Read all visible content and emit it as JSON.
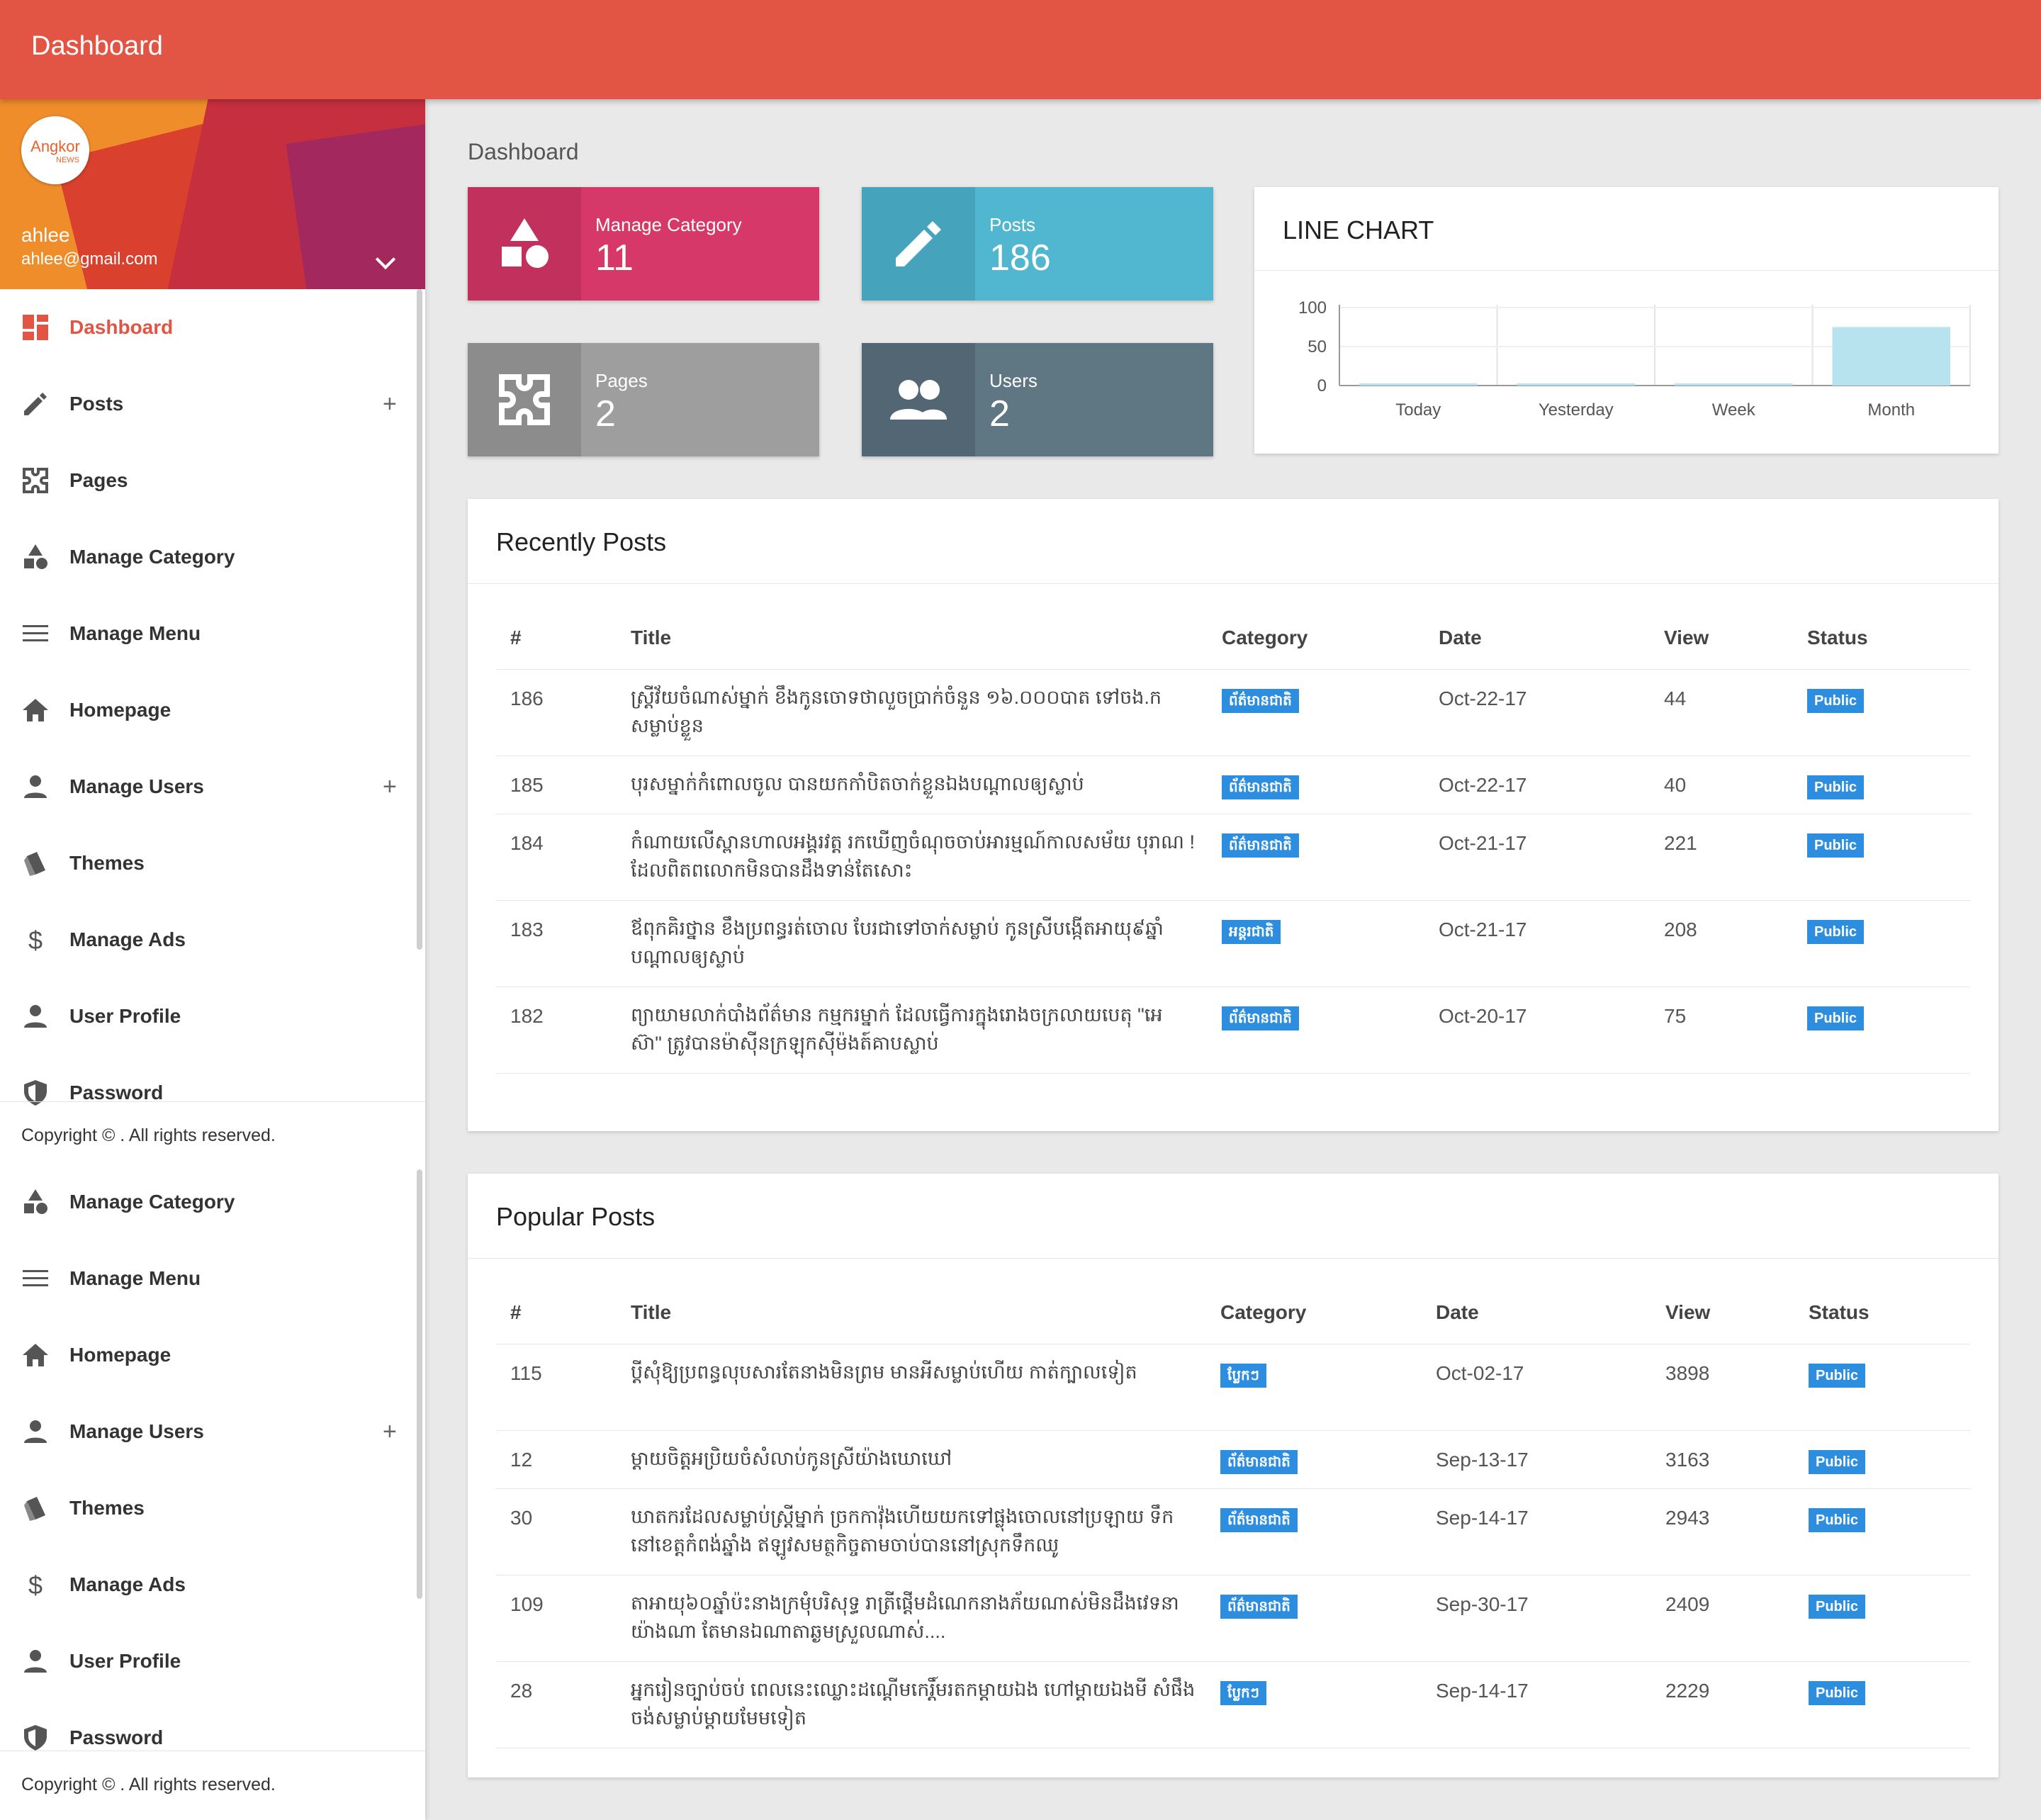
{
  "topbar": {
    "title": "Dashboard"
  },
  "user": {
    "logo_text": "Angkor",
    "logo_sub": "NEWS",
    "name": "ahlee",
    "email": "ahlee@gmail.com"
  },
  "sidebar": {
    "menu_top": [
      {
        "label": "Dashboard",
        "icon": "dashboard-icon",
        "active": true
      },
      {
        "label": "Posts",
        "icon": "pencil-icon",
        "expand": "+"
      },
      {
        "label": "Pages",
        "icon": "puzzle-icon"
      },
      {
        "label": "Manage Category",
        "icon": "shapes-icon"
      },
      {
        "label": "Manage Menu",
        "icon": "menu-icon"
      },
      {
        "label": "Homepage",
        "icon": "home-icon"
      },
      {
        "label": "Manage Users",
        "icon": "person-icon",
        "expand": "+"
      },
      {
        "label": "Themes",
        "icon": "book-icon"
      },
      {
        "label": "Manage Ads",
        "icon": "dollar-icon"
      },
      {
        "label": "User Profile",
        "icon": "person-icon"
      },
      {
        "label": "Password",
        "icon": "shield-icon"
      }
    ],
    "menu_bottom": [
      {
        "label": "Manage Category",
        "icon": "shapes-icon"
      },
      {
        "label": "Manage Menu",
        "icon": "menu-icon"
      },
      {
        "label": "Homepage",
        "icon": "home-icon"
      },
      {
        "label": "Manage Users",
        "icon": "person-icon",
        "expand": "+"
      },
      {
        "label": "Themes",
        "icon": "book-icon"
      },
      {
        "label": "Manage Ads",
        "icon": "dollar-icon"
      },
      {
        "label": "User Profile",
        "icon": "person-icon"
      },
      {
        "label": "Password",
        "icon": "shield-icon"
      }
    ],
    "copyright": "Copyright © . All rights reserved."
  },
  "breadcrumb": "Dashboard",
  "stats": [
    {
      "label": "Manage Category",
      "value": "11",
      "color": "#d6386a",
      "icon_bg": "#c2305e",
      "icon": "shapes-icon"
    },
    {
      "label": "Posts",
      "value": "186",
      "color": "#51b6cf",
      "icon_bg": "#45a3bc",
      "icon": "pencil-icon"
    },
    {
      "label": "Pages",
      "value": "2",
      "color": "#9e9e9e",
      "icon_bg": "#8c8c8c",
      "icon": "puzzle-icon"
    },
    {
      "label": "Users",
      "value": "2",
      "color": "#5f7683",
      "icon_bg": "#526773",
      "icon": "people-icon"
    }
  ],
  "chart_card": {
    "title": "LINE CHART"
  },
  "chart_data": {
    "type": "bar",
    "title": "LINE CHART",
    "categories": [
      "Today",
      "Yesterday",
      "Week",
      "Month"
    ],
    "values": [
      0,
      0,
      0,
      75
    ],
    "ylim": [
      0,
      100
    ],
    "yticks": [
      "100",
      "50",
      "0"
    ],
    "grid": true,
    "bar_color": "#b7e3ee"
  },
  "recent": {
    "title": "Recently Posts",
    "headers": [
      "#",
      "Title",
      "Category",
      "Date",
      "View",
      "Status"
    ],
    "rows": [
      {
        "id": "186",
        "title": "ស្ត្រីវ័យចំណាស់ម្នាក់ ខឹងកូនចោទថាលួចប្រាក់ចំនួន ១៦.០០០បាត ទៅចង.ក សម្លាប់ខ្លួន",
        "category": "ព័ត៌មានជាតិ",
        "date": "Oct-22-17",
        "view": "44",
        "status": "Public"
      },
      {
        "id": "185",
        "title": "បុរសម្នាក់កំពោលចូល បានយកកាំបិតចាក់ខ្លួនឯងបណ្តាលឲ្យស្លាប់",
        "category": "ព័ត៌មានជាតិ",
        "date": "Oct-22-17",
        "view": "40",
        "status": "Public"
      },
      {
        "id": "184",
        "title": "កំណាយលើស្ពានហាលអង្គរវត្ត រកឃើញចំណុចចាប់អារម្មណ៍កាលសម័យ បុរាណ !ដែលពិតពលោកមិនបានដឹងទាន់តែសោះ",
        "category": "ព័ត៌មានជាតិ",
        "date": "Oct-21-17",
        "view": "221",
        "status": "Public"
      },
      {
        "id": "183",
        "title": "ឪពុកគិរថ្នាន ខឹងប្រពន្ធរត់ចោល បែរជាទៅចាក់សម្លាប់ កូនស្រីបង្កើតអាយុ៩ឆ្នាំ បណ្តាលឲ្យស្លាប់",
        "category": "អន្តរជាតិ",
        "date": "Oct-21-17",
        "view": "208",
        "status": "Public"
      },
      {
        "id": "182",
        "title": "ព្យាយាមលាក់បាំងព័ត៌មាន កម្មករម្នាក់ ដែលធ្វើការក្នុងរោងចក្រលាយបេតុ \"អេ ស៊ា\" ត្រូវបានម៉ាស៊ីនក្រឡុកស៊ីម៉ងត៍គាបស្លាប់",
        "category": "ព័ត៌មានជាតិ",
        "date": "Oct-20-17",
        "view": "75",
        "status": "Public"
      }
    ]
  },
  "popular": {
    "title": "Popular Posts",
    "headers": [
      "#",
      "Title",
      "Category",
      "Date",
      "View",
      "Status"
    ],
    "rows": [
      {
        "id": "115",
        "title": "ប្តីសុំឱ្យប្រពន្ធលុបសារតែនាងមិនព្រម មានអីសម្លាប់ហើយ កាត់ក្បាលទៀត",
        "category": "ប្លែកៗ",
        "date": "Oct-02-17",
        "view": "3898",
        "status": "Public"
      },
      {
        "id": "12",
        "title": "ម្តាយចិត្តអប្រិយចំសំលាប់កូនស្រីយ៉ាងឃោឃៅ",
        "category": "ព័ត៌មានជាតិ",
        "date": "Sep-13-17",
        "view": "3163",
        "status": "Public"
      },
      {
        "id": "30",
        "title": "ឃាតករដែលសម្លាប់ស្ត្រីម្នាក់ ច្រកកាវ៉ុងហើយយកទៅផ្លុងចោលនៅប្រឡាយ ទឹក នៅខេត្តកំពង់ឆ្នាំង ឥឡូវសមត្ថកិច្ចតាមចាប់បាននៅស្រុកទឹកឈូ",
        "category": "ព័ត៌មានជាតិ",
        "date": "Sep-14-17",
        "view": "2943",
        "status": "Public"
      },
      {
        "id": "109",
        "title": "តាអាយុ៦០ឆ្នាំប៉ះនាងក្រមុំបរិសុទ្ធ រាត្រីផ្តើមដំណេកនាងភ័យណាស់មិនដឹងវេទនា យ៉ាងណា តែមានឯណាតាឆ្ងមស្រួលណាស់....",
        "category": "ព័ត៌មានជាតិ",
        "date": "Sep-30-17",
        "view": "2409",
        "status": "Public"
      },
      {
        "id": "28",
        "title": "អ្នករៀនច្បាប់ចប់ ពេលនេះឈ្លោះដណ្តើមកេរ្តិ៍មរតកម្តាយឯង ហៅម្តាយឯងមី សំផឹង ចង់សម្លាប់ម្តាយមែមទៀត",
        "category": "ប្លែកៗ",
        "date": "Sep-14-17",
        "view": "2229",
        "status": "Public"
      }
    ]
  },
  "colors": {
    "accent": "#e25443",
    "badge": "#2d8ee0"
  }
}
